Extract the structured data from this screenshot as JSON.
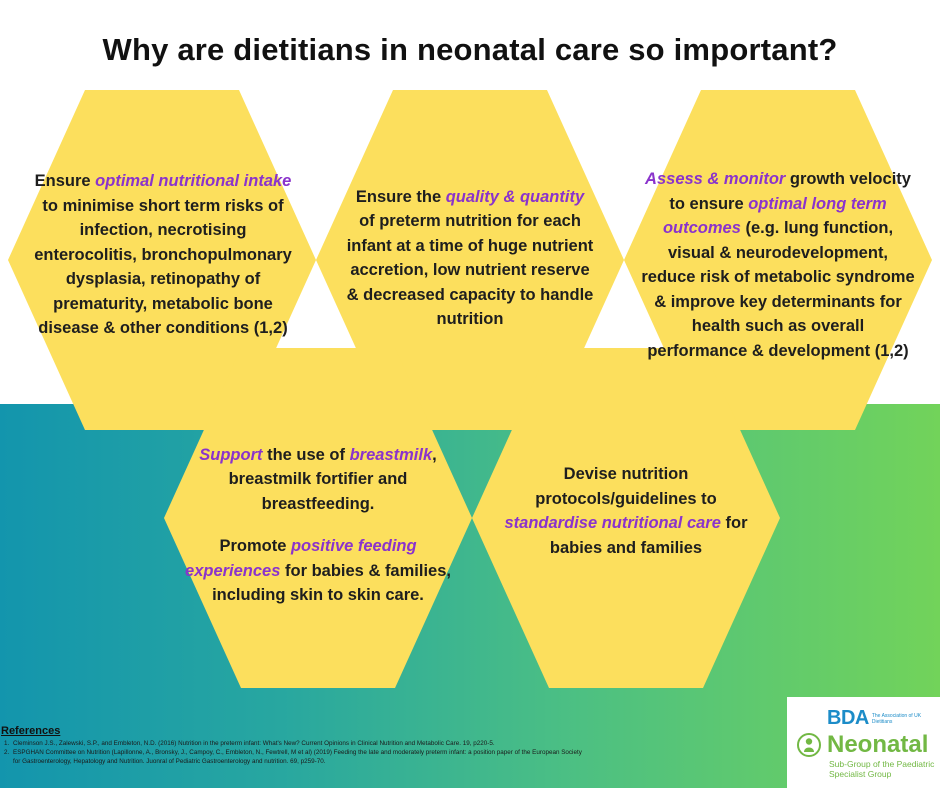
{
  "title": "Why are dietitians in neonatal care so important?",
  "colors": {
    "hexagon": "#fcdf5d",
    "highlight": "#8a33cc",
    "gradient_start": "#1395ad",
    "gradient_end": "#72d35a",
    "bda_blue": "#1c8cc8",
    "neonatal_green": "#72b844"
  },
  "hexagons": [
    {
      "paragraphs": [
        [
          {
            "t": "Ensure ",
            "hl": false
          },
          {
            "t": "optimal nutritional intake",
            "hl": true
          },
          {
            "t": " to minimise short term risks of infection, necrotising enterocolitis, bronchopulmonary dysplasia, retinopathy of prematurity, metabolic bone disease & other conditions (1,2)",
            "hl": false
          }
        ]
      ]
    },
    {
      "paragraphs": [
        [
          {
            "t": "Ensure the ",
            "hl": false
          },
          {
            "t": "quality & quantity",
            "hl": true
          },
          {
            "t": " of preterm nutrition for each infant at a time of huge nutrient accretion, low nutrient reserve & decreased capacity to handle nutrition",
            "hl": false
          }
        ]
      ]
    },
    {
      "paragraphs": [
        [
          {
            "t": "Assess & monitor",
            "hl": true
          },
          {
            "t": " growth velocity to ensure ",
            "hl": false
          },
          {
            "t": "optimal long term outcomes",
            "hl": true
          },
          {
            "t": " (e.g. lung function, visual & neurodevelopment, reduce risk of metabolic syndrome & improve key determinants for health such as overall performance & development (1,2)",
            "hl": false
          }
        ]
      ]
    },
    {
      "paragraphs": [
        [
          {
            "t": "Support",
            "hl": true
          },
          {
            "t": " the use of ",
            "hl": false
          },
          {
            "t": "breastmilk",
            "hl": true
          },
          {
            "t": ", breastmilk fortifier and breastfeeding.",
            "hl": false
          }
        ],
        [
          {
            "t": "Promote ",
            "hl": false
          },
          {
            "t": "positive feeding experiences",
            "hl": true
          },
          {
            "t": " for babies & families, including skin to skin care.",
            "hl": false
          }
        ]
      ]
    },
    {
      "paragraphs": [
        [
          {
            "t": "Devise nutrition protocols/guidelines to ",
            "hl": false
          },
          {
            "t": "standardise nutritional care",
            "hl": true
          },
          {
            "t": " for babies and families",
            "hl": false
          }
        ]
      ]
    }
  ],
  "references": {
    "heading": "References",
    "items": [
      {
        "num": "1.",
        "text": "Cleminson J.S., Zalewski, S.P., and Embleton, N.D. (2016) Nutrition in the preterm infant: What's New? Current Opinions in Clinical Nutrition and Metabolic Care. 19, p220-5."
      },
      {
        "num": "2.",
        "text": "ESPGHAN Committee on Nutrition (Lapillonne, A., Bronsky, J., Campoy, C., Embleton, N., Fewtrell, M et al) (2019) Feeding the late and moderately preterm infant: a position paper of the European Society"
      },
      {
        "num": "",
        "text": "for Gastroenterology, Hepatology and Nutrition. Juonral of Pediatric Gastroenterology and nutrition. 69, p259-70."
      }
    ]
  },
  "logo": {
    "bda": "BDA",
    "bda_sub": "The Association of UK Dietitians",
    "neonatal": "Neonatal",
    "sub": "Sub-Group of the Paediatric Specialist Group"
  }
}
